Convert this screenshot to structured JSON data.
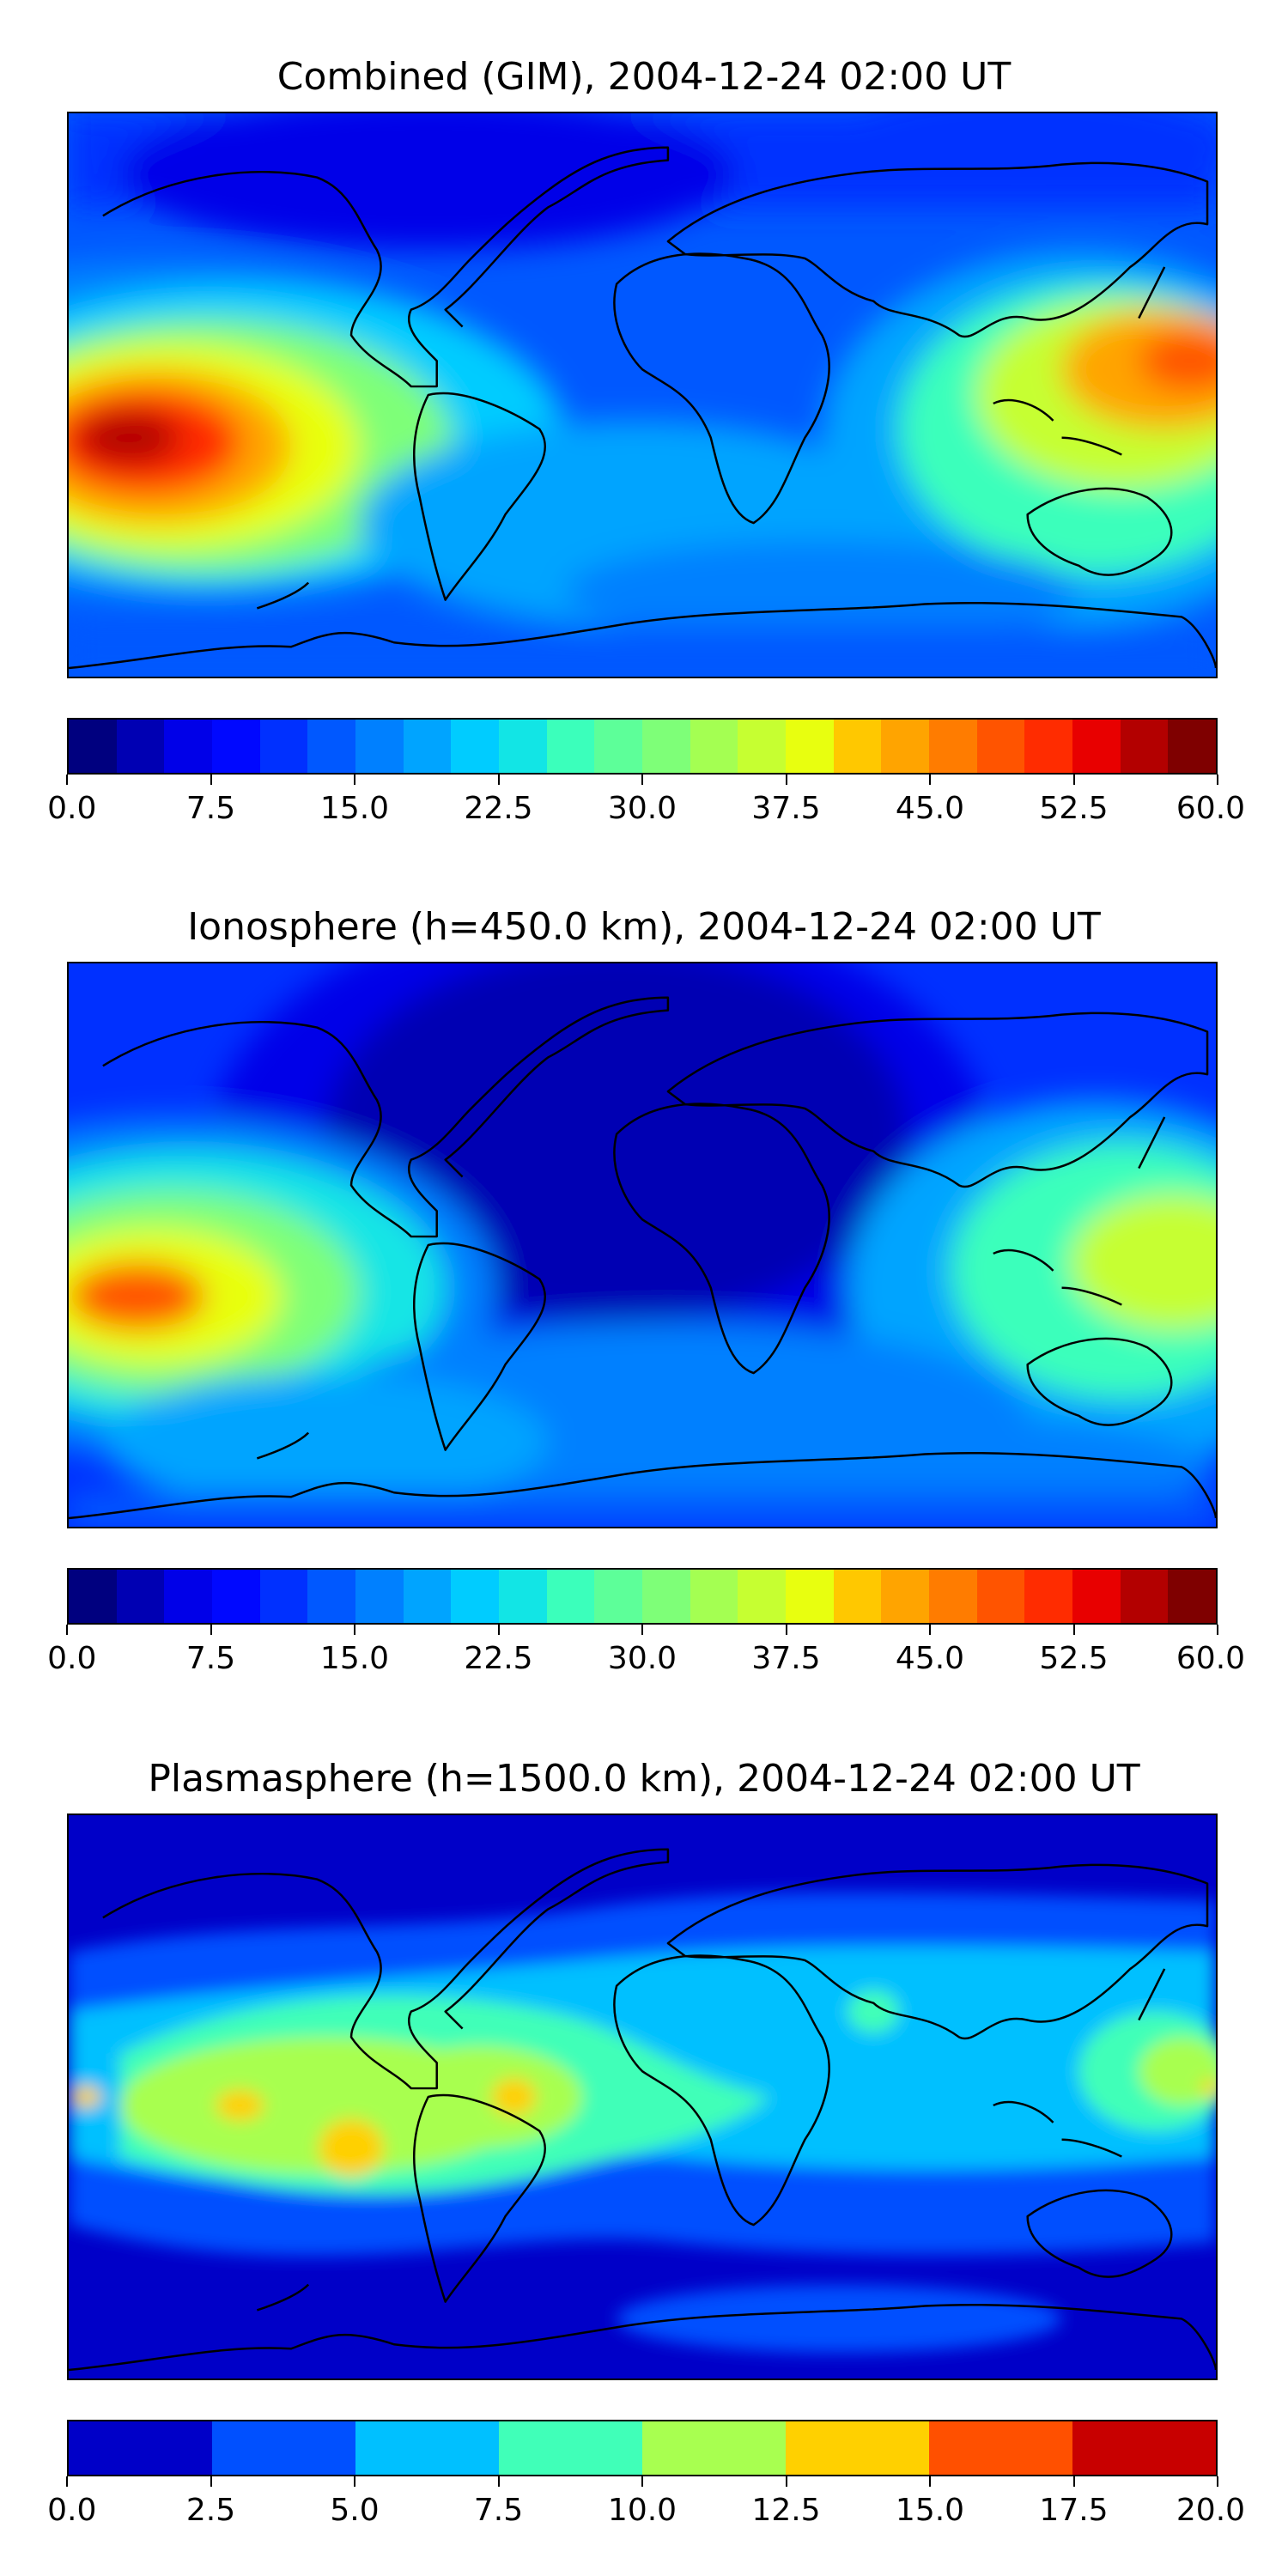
{
  "panels": [
    {
      "title": "Combined (GIM), 2004-12-24 02:00 UT",
      "colorbar": {
        "range": [
          0,
          60
        ],
        "colors": [
          "#00007f",
          "#0000b3",
          "#0000e8",
          "#0008ff",
          "#0030ff",
          "#0058ff",
          "#0080ff",
          "#00a4ff",
          "#00ccff",
          "#12e5e5",
          "#3bffbb",
          "#5dff99",
          "#7eff78",
          "#a4ff52",
          "#c6ff31",
          "#e8ff0f",
          "#ffc800",
          "#ffa400",
          "#ff7c00",
          "#ff5400",
          "#ff2c00",
          "#e80000",
          "#b30000",
          "#7f0000"
        ],
        "tick_labels": [
          "0.0",
          "7.5",
          "15.0",
          "22.5",
          "30.0",
          "37.5",
          "45.0",
          "52.5",
          "60.0"
        ]
      }
    },
    {
      "title": "Ionosphere  (h=450.0 km), 2004-12-24 02:00 UT",
      "colorbar": {
        "range": [
          0,
          60
        ],
        "colors": [
          "#00007f",
          "#0000b3",
          "#0000e8",
          "#0008ff",
          "#0030ff",
          "#0058ff",
          "#0080ff",
          "#00a4ff",
          "#00ccff",
          "#12e5e5",
          "#3bffbb",
          "#5dff99",
          "#7eff78",
          "#a4ff52",
          "#c6ff31",
          "#e8ff0f",
          "#ffc800",
          "#ffa400",
          "#ff7c00",
          "#ff5400",
          "#ff2c00",
          "#e80000",
          "#b30000",
          "#7f0000"
        ],
        "tick_labels": [
          "0.0",
          "7.5",
          "15.0",
          "22.5",
          "30.0",
          "37.5",
          "45.0",
          "52.5",
          "60.0"
        ]
      }
    },
    {
      "title": "Plasmasphere (h=1500.0 km), 2004-12-24 02:00 UT",
      "colorbar": {
        "range": [
          0,
          20
        ],
        "colors": [
          "#0000c8",
          "#0050ff",
          "#00c0ff",
          "#40ffb8",
          "#a8ff50",
          "#ffd000",
          "#ff5000",
          "#c80000"
        ],
        "tick_labels": [
          "0.0",
          "2.5",
          "5.0",
          "7.5",
          "10.0",
          "12.5",
          "15.0",
          "17.5",
          "20.0"
        ]
      }
    }
  ]
}
